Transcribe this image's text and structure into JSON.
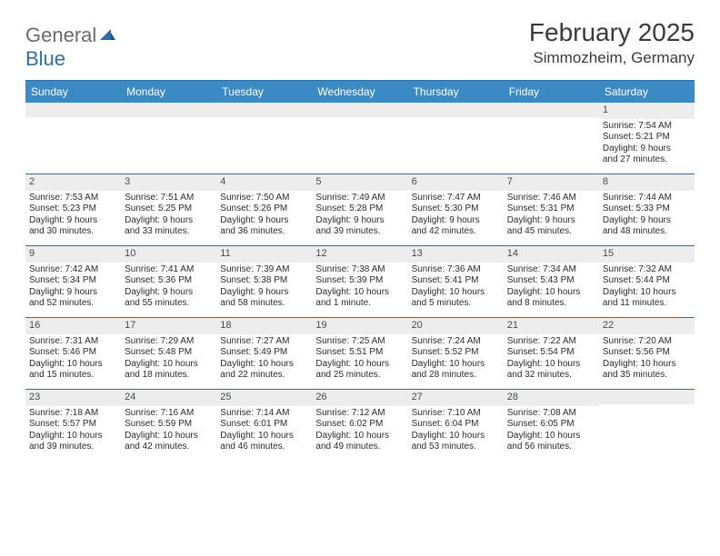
{
  "logo": {
    "text1": "General",
    "text2": "Blue"
  },
  "title": "February 2025",
  "location": "Simmozheim, Germany",
  "colors": {
    "header_bg": "#3b8ac4",
    "header_border": "#2f6fa8",
    "week_divider": "#3b6b96",
    "daynum_bg": "#ededed",
    "text": "#2b2b2b",
    "logo_gray": "#6b6b6b",
    "logo_blue": "#2f6fa8"
  },
  "day_names": [
    "Sunday",
    "Monday",
    "Tuesday",
    "Wednesday",
    "Thursday",
    "Friday",
    "Saturday"
  ],
  "weeks": [
    [
      {
        "n": "",
        "lines": []
      },
      {
        "n": "",
        "lines": []
      },
      {
        "n": "",
        "lines": []
      },
      {
        "n": "",
        "lines": []
      },
      {
        "n": "",
        "lines": []
      },
      {
        "n": "",
        "lines": []
      },
      {
        "n": "1",
        "lines": [
          "Sunrise: 7:54 AM",
          "Sunset: 5:21 PM",
          "Daylight: 9 hours",
          "and 27 minutes."
        ]
      }
    ],
    [
      {
        "n": "2",
        "lines": [
          "Sunrise: 7:53 AM",
          "Sunset: 5:23 PM",
          "Daylight: 9 hours",
          "and 30 minutes."
        ]
      },
      {
        "n": "3",
        "lines": [
          "Sunrise: 7:51 AM",
          "Sunset: 5:25 PM",
          "Daylight: 9 hours",
          "and 33 minutes."
        ]
      },
      {
        "n": "4",
        "lines": [
          "Sunrise: 7:50 AM",
          "Sunset: 5:26 PM",
          "Daylight: 9 hours",
          "and 36 minutes."
        ]
      },
      {
        "n": "5",
        "lines": [
          "Sunrise: 7:49 AM",
          "Sunset: 5:28 PM",
          "Daylight: 9 hours",
          "and 39 minutes."
        ]
      },
      {
        "n": "6",
        "lines": [
          "Sunrise: 7:47 AM",
          "Sunset: 5:30 PM",
          "Daylight: 9 hours",
          "and 42 minutes."
        ]
      },
      {
        "n": "7",
        "lines": [
          "Sunrise: 7:46 AM",
          "Sunset: 5:31 PM",
          "Daylight: 9 hours",
          "and 45 minutes."
        ]
      },
      {
        "n": "8",
        "lines": [
          "Sunrise: 7:44 AM",
          "Sunset: 5:33 PM",
          "Daylight: 9 hours",
          "and 48 minutes."
        ]
      }
    ],
    [
      {
        "n": "9",
        "lines": [
          "Sunrise: 7:42 AM",
          "Sunset: 5:34 PM",
          "Daylight: 9 hours",
          "and 52 minutes."
        ]
      },
      {
        "n": "10",
        "lines": [
          "Sunrise: 7:41 AM",
          "Sunset: 5:36 PM",
          "Daylight: 9 hours",
          "and 55 minutes."
        ]
      },
      {
        "n": "11",
        "lines": [
          "Sunrise: 7:39 AM",
          "Sunset: 5:38 PM",
          "Daylight: 9 hours",
          "and 58 minutes."
        ]
      },
      {
        "n": "12",
        "lines": [
          "Sunrise: 7:38 AM",
          "Sunset: 5:39 PM",
          "Daylight: 10 hours",
          "and 1 minute."
        ]
      },
      {
        "n": "13",
        "lines": [
          "Sunrise: 7:36 AM",
          "Sunset: 5:41 PM",
          "Daylight: 10 hours",
          "and 5 minutes."
        ]
      },
      {
        "n": "14",
        "lines": [
          "Sunrise: 7:34 AM",
          "Sunset: 5:43 PM",
          "Daylight: 10 hours",
          "and 8 minutes."
        ]
      },
      {
        "n": "15",
        "lines": [
          "Sunrise: 7:32 AM",
          "Sunset: 5:44 PM",
          "Daylight: 10 hours",
          "and 11 minutes."
        ]
      }
    ],
    [
      {
        "n": "16",
        "lines": [
          "Sunrise: 7:31 AM",
          "Sunset: 5:46 PM",
          "Daylight: 10 hours",
          "and 15 minutes."
        ]
      },
      {
        "n": "17",
        "lines": [
          "Sunrise: 7:29 AM",
          "Sunset: 5:48 PM",
          "Daylight: 10 hours",
          "and 18 minutes."
        ]
      },
      {
        "n": "18",
        "lines": [
          "Sunrise: 7:27 AM",
          "Sunset: 5:49 PM",
          "Daylight: 10 hours",
          "and 22 minutes."
        ]
      },
      {
        "n": "19",
        "lines": [
          "Sunrise: 7:25 AM",
          "Sunset: 5:51 PM",
          "Daylight: 10 hours",
          "and 25 minutes."
        ]
      },
      {
        "n": "20",
        "lines": [
          "Sunrise: 7:24 AM",
          "Sunset: 5:52 PM",
          "Daylight: 10 hours",
          "and 28 minutes."
        ]
      },
      {
        "n": "21",
        "lines": [
          "Sunrise: 7:22 AM",
          "Sunset: 5:54 PM",
          "Daylight: 10 hours",
          "and 32 minutes."
        ]
      },
      {
        "n": "22",
        "lines": [
          "Sunrise: 7:20 AM",
          "Sunset: 5:56 PM",
          "Daylight: 10 hours",
          "and 35 minutes."
        ]
      }
    ],
    [
      {
        "n": "23",
        "lines": [
          "Sunrise: 7:18 AM",
          "Sunset: 5:57 PM",
          "Daylight: 10 hours",
          "and 39 minutes."
        ]
      },
      {
        "n": "24",
        "lines": [
          "Sunrise: 7:16 AM",
          "Sunset: 5:59 PM",
          "Daylight: 10 hours",
          "and 42 minutes."
        ]
      },
      {
        "n": "25",
        "lines": [
          "Sunrise: 7:14 AM",
          "Sunset: 6:01 PM",
          "Daylight: 10 hours",
          "and 46 minutes."
        ]
      },
      {
        "n": "26",
        "lines": [
          "Sunrise: 7:12 AM",
          "Sunset: 6:02 PM",
          "Daylight: 10 hours",
          "and 49 minutes."
        ]
      },
      {
        "n": "27",
        "lines": [
          "Sunrise: 7:10 AM",
          "Sunset: 6:04 PM",
          "Daylight: 10 hours",
          "and 53 minutes."
        ]
      },
      {
        "n": "28",
        "lines": [
          "Sunrise: 7:08 AM",
          "Sunset: 6:05 PM",
          "Daylight: 10 hours",
          "and 56 minutes."
        ]
      },
      {
        "n": "",
        "lines": []
      }
    ]
  ]
}
